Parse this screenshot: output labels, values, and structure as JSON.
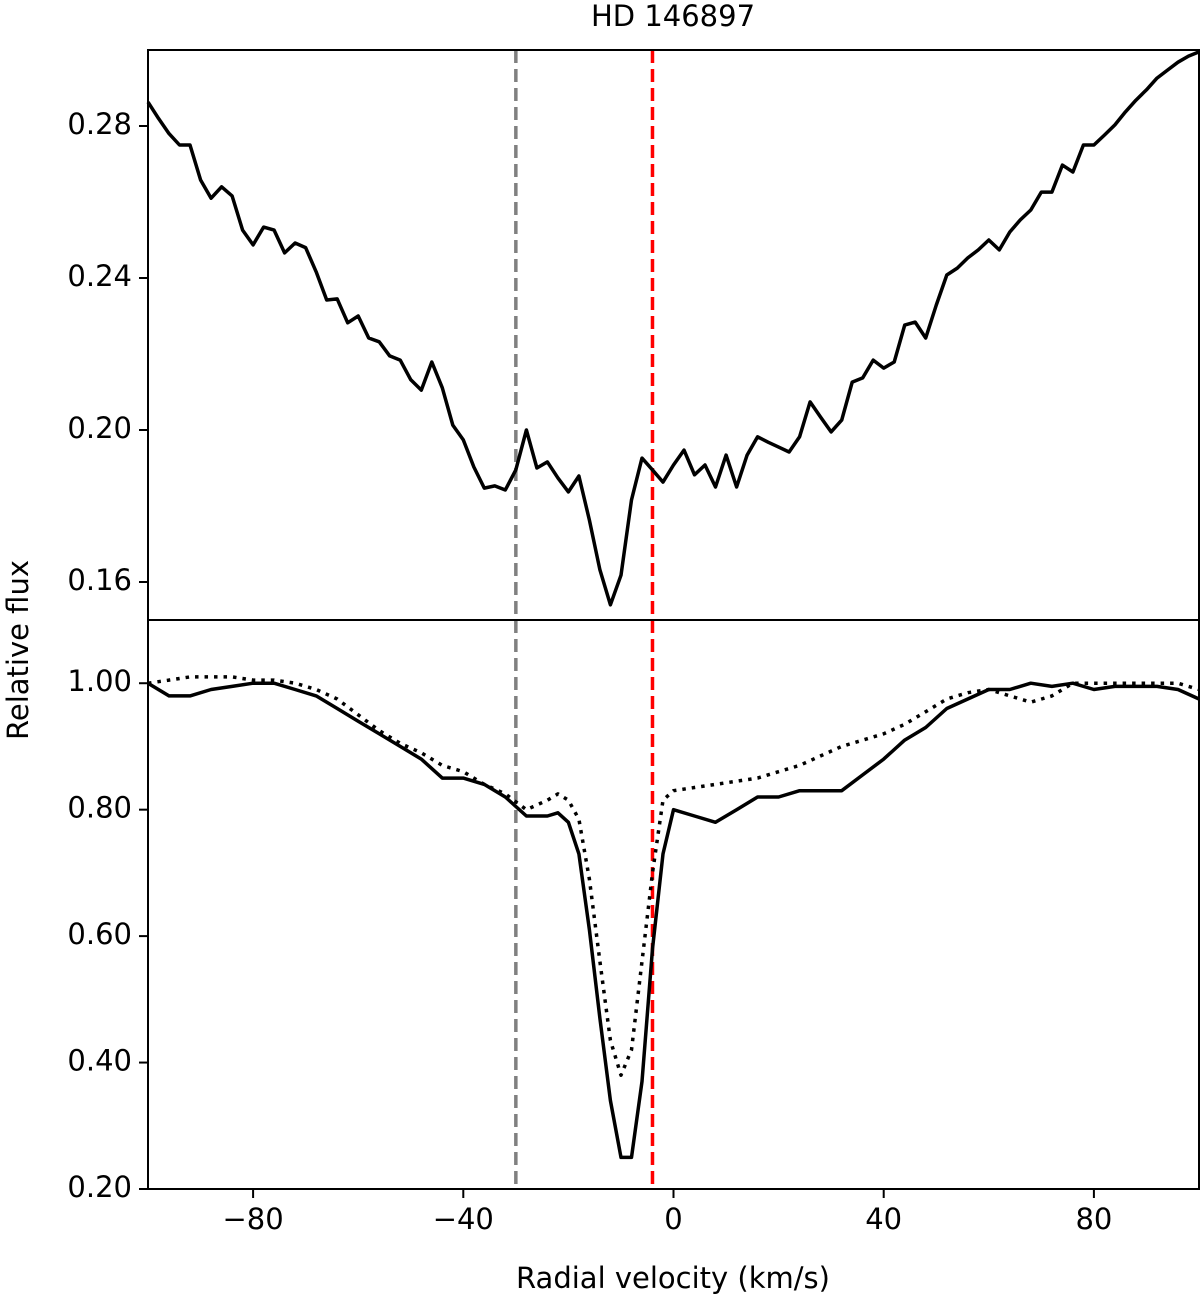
{
  "chart_data": [
    {
      "type": "line",
      "title": "HD 146897",
      "ylabel": "Relative flux",
      "xlim": [
        -100,
        100
      ],
      "ylim": [
        0.15,
        0.3
      ],
      "yticks": [
        0.16,
        {
          "value": 0.2,
          "label": "0.20"
        },
        0.24,
        0.28
      ],
      "vlines": [
        {
          "x": -30,
          "color": "#808080"
        },
        {
          "x": -4,
          "color": "#ff0000"
        }
      ],
      "x": [
        -100,
        -98,
        -96,
        -94,
        -92,
        -90,
        -88,
        -86,
        -84,
        -82,
        -80,
        -78,
        -76,
        -74,
        -72,
        -70,
        -68,
        -66,
        -64,
        -62,
        -60,
        -58,
        -56,
        -54,
        -52,
        -50,
        -48,
        -46,
        -44,
        -42,
        -40,
        -38,
        -36,
        -34,
        -32,
        -30,
        -28,
        -26,
        -24,
        -22,
        -20,
        -18,
        -16,
        -14,
        -12,
        -10,
        -8,
        -6,
        -4,
        -2,
        0,
        2,
        4,
        6,
        8,
        10,
        12,
        14,
        16,
        18,
        20,
        22,
        24,
        26,
        28,
        30,
        32,
        34,
        36,
        38,
        40,
        42,
        44,
        46,
        48,
        50,
        52,
        54,
        56,
        58,
        60,
        62,
        64,
        66,
        68,
        70,
        72,
        74,
        76,
        78,
        80,
        82,
        84,
        86,
        88,
        90,
        92,
        94,
        96,
        98,
        100
      ],
      "series": [
        {
          "color": "#000000",
          "style": "solid",
          "values": [
            0.2863,
            0.282,
            0.278,
            0.275,
            0.275,
            0.2658,
            0.261,
            0.264,
            0.2616,
            0.2526,
            0.2487,
            0.2534,
            0.2526,
            0.2466,
            0.2492,
            0.248,
            0.2416,
            0.2342,
            0.2345,
            0.2282,
            0.23,
            0.2242,
            0.2232,
            0.2195,
            0.2184,
            0.2132,
            0.2105,
            0.2179,
            0.2111,
            0.2013,
            0.1974,
            0.1903,
            0.1847,
            0.1853,
            0.1842,
            0.1895,
            0.2,
            0.19,
            0.1916,
            0.1874,
            0.1837,
            0.1879,
            0.1763,
            0.1632,
            0.154,
            0.1618,
            0.1816,
            0.1926,
            0.1895,
            0.1863,
            0.1908,
            0.1947,
            0.1882,
            0.1908,
            0.185,
            0.1934,
            0.185,
            0.1934,
            0.1982,
            0.1968,
            0.1955,
            0.1942,
            0.1982,
            0.2074,
            0.2034,
            0.1995,
            0.2026,
            0.2126,
            0.2137,
            0.2184,
            0.2163,
            0.2179,
            0.2276,
            0.2284,
            0.2242,
            0.2329,
            0.2408,
            0.2426,
            0.2453,
            0.2474,
            0.25,
            0.2474,
            0.2521,
            0.2553,
            0.2579,
            0.2626,
            0.2626,
            0.2697,
            0.2679,
            0.275,
            0.275,
            0.2776,
            0.2803,
            0.2837,
            0.2868,
            0.2895,
            0.2926,
            0.2947,
            0.2968,
            0.2984,
            0.2995
          ]
        }
      ]
    },
    {
      "type": "line",
      "xlabel": "Radial velocity (km/s)",
      "xlim": [
        -100,
        100
      ],
      "ylim": [
        0.2,
        1.1
      ],
      "xticks": [
        {
          "value": -80,
          "label": "−80"
        },
        {
          "value": -40,
          "label": "−40"
        },
        0,
        40,
        80
      ],
      "yticks": [
        {
          "value": 0.2,
          "label": "0.20"
        },
        {
          "value": 0.4,
          "label": "0.40"
        },
        {
          "value": 0.6,
          "label": "0.60"
        },
        {
          "value": 0.8,
          "label": "0.80"
        },
        {
          "value": 1,
          "label": "1.00"
        }
      ],
      "vlines": [
        {
          "x": -30,
          "color": "#808080"
        },
        {
          "x": -4,
          "color": "#ff0000"
        }
      ],
      "x": [
        -100,
        -96,
        -92,
        -88,
        -84,
        -80,
        -76,
        -72,
        -68,
        -64,
        -60,
        -56,
        -52,
        -48,
        -44,
        -40,
        -36,
        -32,
        -28,
        -24,
        -22,
        -20,
        -18,
        -16,
        -14,
        -12,
        -10,
        -8,
        -6,
        -4,
        -2,
        0,
        4,
        8,
        12,
        16,
        20,
        24,
        28,
        32,
        36,
        40,
        44,
        48,
        52,
        56,
        60,
        64,
        68,
        72,
        76,
        80,
        84,
        88,
        92,
        96,
        100
      ],
      "series": [
        {
          "color": "#000000",
          "style": "solid",
          "values": [
            1.0,
            0.98,
            0.98,
            0.99,
            0.995,
            1.0,
            1.0,
            0.99,
            0.98,
            0.96,
            0.94,
            0.92,
            0.9,
            0.88,
            0.85,
            0.85,
            0.84,
            0.82,
            0.79,
            0.79,
            0.795,
            0.78,
            0.73,
            0.61,
            0.47,
            0.34,
            0.25,
            0.25,
            0.37,
            0.58,
            0.73,
            0.8,
            0.79,
            0.78,
            0.8,
            0.82,
            0.82,
            0.83,
            0.83,
            0.83,
            0.855,
            0.88,
            0.91,
            0.93,
            0.96,
            0.975,
            0.99,
            0.99,
            1.0,
            0.995,
            1.0,
            0.99,
            0.995,
            0.995,
            0.995,
            0.99,
            0.975
          ]
        },
        {
          "color": "#000000",
          "style": "dotted",
          "values": [
            1.0,
            1.005,
            1.01,
            1.01,
            1.01,
            1.005,
            1.005,
            1.0,
            0.99,
            0.975,
            0.95,
            0.925,
            0.905,
            0.89,
            0.87,
            0.86,
            0.84,
            0.825,
            0.8,
            0.815,
            0.825,
            0.815,
            0.785,
            0.69,
            0.56,
            0.435,
            0.38,
            0.42,
            0.56,
            0.7,
            0.815,
            0.83,
            0.835,
            0.84,
            0.845,
            0.85,
            0.86,
            0.87,
            0.885,
            0.9,
            0.91,
            0.92,
            0.935,
            0.955,
            0.975,
            0.985,
            0.99,
            0.98,
            0.97,
            0.98,
            1.0,
            1.0,
            1.0,
            1.0,
            1.0,
            1.0,
            0.99
          ]
        }
      ]
    }
  ]
}
